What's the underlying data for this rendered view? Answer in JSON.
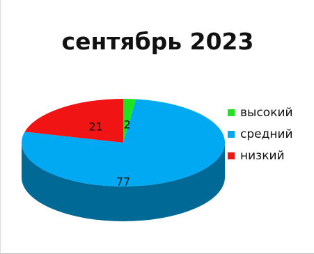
{
  "chart_data": {
    "type": "pie",
    "title": "сентябрь 2023",
    "series": [
      {
        "name": "высокий",
        "value": 2,
        "color": "#1fe31f"
      },
      {
        "name": "средний",
        "value": 77,
        "color": "#00a9f2"
      },
      {
        "name": "низкий",
        "value": 21,
        "color": "#f01414"
      }
    ],
    "legend_position": "right",
    "style": "3d"
  }
}
